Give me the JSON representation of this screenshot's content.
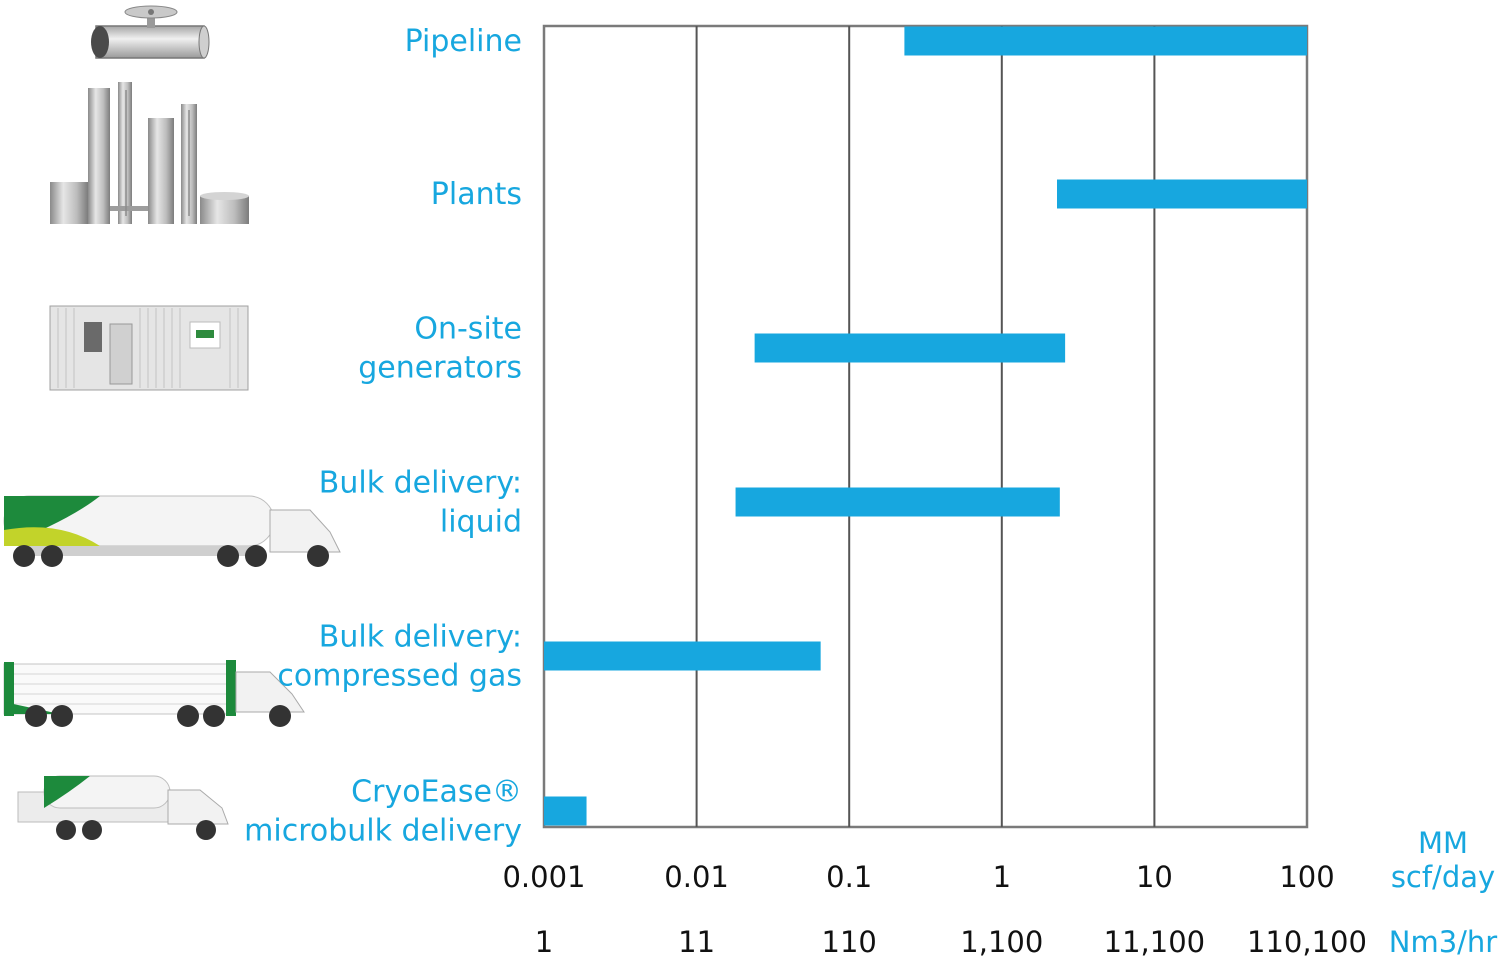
{
  "chart_data": {
    "type": "bar",
    "orientation": "horizontal",
    "x_scale": "log",
    "x_range": [
      0.001,
      100
    ],
    "grid": true,
    "bar_color": "#17a7df",
    "label_color": "#17a7df",
    "categories": [
      "Pipeline",
      "Plants",
      "On-site generators",
      "Bulk delivery: liquid",
      "Bulk delivery: compressed gas",
      "CryoEase® microbulk delivery"
    ],
    "category_lines": [
      [
        "Pipeline"
      ],
      [
        "Plants"
      ],
      [
        "On-site",
        "generators"
      ],
      [
        "Bulk delivery:",
        "liquid"
      ],
      [
        "Bulk delivery:",
        "compressed gas"
      ],
      [
        "CryoEase®",
        "microbulk delivery"
      ]
    ],
    "icons": [
      "pipeline-icon",
      "plant-icon",
      "generator-container-icon",
      "liquid-tanker-truck-icon",
      "tube-trailer-truck-icon",
      "microbulk-truck-icon"
    ],
    "ranges": [
      [
        0.23,
        100
      ],
      [
        2.3,
        100
      ],
      [
        0.024,
        2.6
      ],
      [
        0.018,
        2.4
      ],
      [
        0.001,
        0.065
      ],
      [
        0.001,
        0.0019
      ]
    ],
    "axis_primary": {
      "ticks": [
        "0.001",
        "0.01",
        "0.1",
        "1",
        "10",
        "100"
      ],
      "unit_lines": [
        "MM",
        "scf/day"
      ]
    },
    "axis_secondary": {
      "ticks": [
        "1",
        "11",
        "110",
        "1,100",
        "11,100",
        "110,100"
      ],
      "unit": "Nm3/hr"
    }
  }
}
